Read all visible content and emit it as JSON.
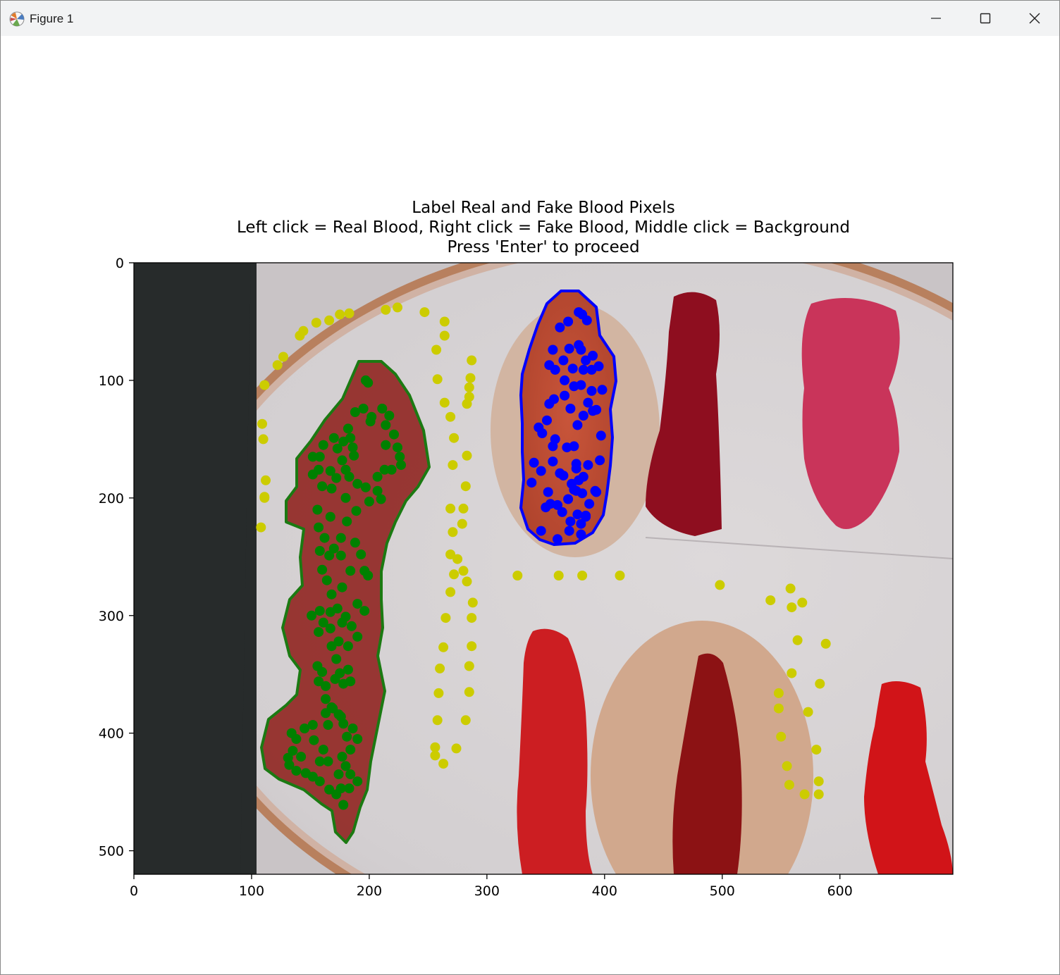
{
  "window": {
    "title": "Figure 1",
    "app_icon": "matplotlib-icon",
    "controls": {
      "minimize": "minimize-icon",
      "maximize": "maximize-icon",
      "close": "close-icon"
    }
  },
  "figure": {
    "title_lines": [
      "Label Real and Fake Blood Pixels",
      "Left click = Real Blood, Right click = Fake Blood, Middle click = Background",
      "Press 'Enter' to proceed"
    ]
  },
  "chart_data": {
    "type": "scatter",
    "title": "Label Real and Fake Blood Pixels\nLeft click = Real Blood, Right click = Fake Blood, Middle click = Background\nPress 'Enter' to proceed",
    "xlim": [
      0,
      696
    ],
    "ylim": [
      520,
      0
    ],
    "y_inverted": true,
    "background": "photograph of embroidery hoop with red blood and fake-blood stains on white fabric",
    "x_ticks": [
      0,
      100,
      200,
      300,
      400,
      500,
      600
    ],
    "y_ticks": [
      0,
      100,
      200,
      300,
      400,
      500
    ],
    "colors": {
      "green": "#008000",
      "blue": "#0000ff",
      "yellow": "#cccc00"
    },
    "series": [
      {
        "color": "green",
        "marker": "o",
        "points": [
          [
            197,
            100
          ],
          [
            199,
            102
          ],
          [
            195,
            124
          ],
          [
            202,
            131
          ],
          [
            211,
            124
          ],
          [
            214,
            138
          ],
          [
            217,
            130
          ],
          [
            221,
            146
          ],
          [
            224,
            157
          ],
          [
            226,
            165
          ],
          [
            227,
            172
          ],
          [
            214,
            155
          ],
          [
            201,
            135
          ],
          [
            188,
            127
          ],
          [
            182,
            141
          ],
          [
            184,
            149
          ],
          [
            186,
            157
          ],
          [
            187,
            164
          ],
          [
            178,
            152
          ],
          [
            170,
            149
          ],
          [
            173,
            158
          ],
          [
            177,
            168
          ],
          [
            180,
            176
          ],
          [
            161,
            155
          ],
          [
            152,
            165
          ],
          [
            158,
            165
          ],
          [
            152,
            180
          ],
          [
            157,
            176
          ],
          [
            167,
            177
          ],
          [
            172,
            183
          ],
          [
            183,
            182
          ],
          [
            190,
            188
          ],
          [
            197,
            191
          ],
          [
            207,
            182
          ],
          [
            213,
            176
          ],
          [
            219,
            176
          ],
          [
            207,
            194
          ],
          [
            210,
            201
          ],
          [
            200,
            203
          ],
          [
            189,
            211
          ],
          [
            180,
            200
          ],
          [
            168,
            192
          ],
          [
            160,
            190
          ],
          [
            156,
            210
          ],
          [
            157,
            225
          ],
          [
            162,
            234
          ],
          [
            167,
            216
          ],
          [
            170,
            243
          ],
          [
            176,
            234
          ],
          [
            181,
            220
          ],
          [
            188,
            238
          ],
          [
            193,
            248
          ],
          [
            196,
            262
          ],
          [
            199,
            266
          ],
          [
            184,
            262
          ],
          [
            176,
            249
          ],
          [
            166,
            249
          ],
          [
            158,
            245
          ],
          [
            160,
            261
          ],
          [
            164,
            270
          ],
          [
            168,
            282
          ],
          [
            177,
            276
          ],
          [
            190,
            290
          ],
          [
            196,
            296
          ],
          [
            180,
            301
          ],
          [
            173,
            294
          ],
          [
            167,
            297
          ],
          [
            158,
            296
          ],
          [
            161,
            306
          ],
          [
            151,
            300
          ],
          [
            157,
            314
          ],
          [
            167,
            311
          ],
          [
            177,
            306
          ],
          [
            185,
            309
          ],
          [
            190,
            318
          ],
          [
            182,
            326
          ],
          [
            174,
            322
          ],
          [
            168,
            326
          ],
          [
            172,
            337
          ],
          [
            175,
            349
          ],
          [
            182,
            346
          ],
          [
            184,
            356
          ],
          [
            178,
            358
          ],
          [
            171,
            354
          ],
          [
            163,
            360
          ],
          [
            160,
            348
          ],
          [
            156,
            343
          ],
          [
            157,
            356
          ],
          [
            163,
            371
          ],
          [
            168,
            378
          ],
          [
            174,
            384
          ],
          [
            178,
            392
          ],
          [
            181,
            403
          ],
          [
            176,
            386
          ],
          [
            169,
            379
          ],
          [
            163,
            383
          ],
          [
            152,
            393
          ],
          [
            145,
            396
          ],
          [
            138,
            405
          ],
          [
            135,
            415
          ],
          [
            131,
            421
          ],
          [
            132,
            427
          ],
          [
            138,
            432
          ],
          [
            146,
            434
          ],
          [
            152,
            437
          ],
          [
            158,
            441
          ],
          [
            166,
            448
          ],
          [
            172,
            452
          ],
          [
            176,
            447
          ],
          [
            178,
            461
          ],
          [
            183,
            447
          ],
          [
            190,
            441
          ],
          [
            184,
            435
          ],
          [
            180,
            428
          ],
          [
            177,
            420
          ],
          [
            184,
            414
          ],
          [
            190,
            405
          ],
          [
            186,
            396
          ],
          [
            165,
            393
          ],
          [
            153,
            406
          ],
          [
            161,
            414
          ],
          [
            165,
            424
          ],
          [
            158,
            424
          ],
          [
            142,
            420
          ],
          [
            134,
            400
          ],
          [
            174,
            435
          ]
        ]
      },
      {
        "color": "blue",
        "marker": "o",
        "points": [
          [
            378,
            42
          ],
          [
            381,
            44
          ],
          [
            385,
            49
          ],
          [
            369,
            50
          ],
          [
            362,
            55
          ],
          [
            356,
            74
          ],
          [
            365,
            83
          ],
          [
            370,
            73
          ],
          [
            380,
            74
          ],
          [
            378,
            70
          ],
          [
            384,
            83
          ],
          [
            390,
            79
          ],
          [
            395,
            88
          ],
          [
            389,
            91
          ],
          [
            382,
            91
          ],
          [
            373,
            90
          ],
          [
            358,
            91
          ],
          [
            353,
            87
          ],
          [
            366,
            100
          ],
          [
            374,
            105
          ],
          [
            380,
            104
          ],
          [
            389,
            109
          ],
          [
            386,
            119
          ],
          [
            398,
            108
          ],
          [
            390,
            126
          ],
          [
            393,
            125
          ],
          [
            382,
            130
          ],
          [
            377,
            138
          ],
          [
            371,
            124
          ],
          [
            366,
            113
          ],
          [
            357,
            116
          ],
          [
            353,
            120
          ],
          [
            351,
            134
          ],
          [
            358,
            150
          ],
          [
            347,
            145
          ],
          [
            344,
            140
          ],
          [
            356,
            156
          ],
          [
            368,
            157
          ],
          [
            374,
            156
          ],
          [
            376,
            171
          ],
          [
            376,
            175
          ],
          [
            382,
            182
          ],
          [
            378,
            185
          ],
          [
            381,
            196
          ],
          [
            376,
            194
          ],
          [
            372,
            188
          ],
          [
            365,
            181
          ],
          [
            362,
            179
          ],
          [
            356,
            169
          ],
          [
            346,
            177
          ],
          [
            340,
            170
          ],
          [
            338,
            187
          ],
          [
            352,
            195
          ],
          [
            354,
            205
          ],
          [
            364,
            212
          ],
          [
            369,
            201
          ],
          [
            377,
            214
          ],
          [
            371,
            220
          ],
          [
            380,
            222
          ],
          [
            384,
            216
          ],
          [
            387,
            205
          ],
          [
            393,
            195
          ],
          [
            392,
            194
          ],
          [
            386,
            172
          ],
          [
            374,
            193
          ],
          [
            360,
            206
          ],
          [
            350,
            208
          ],
          [
            346,
            228
          ],
          [
            360,
            235
          ],
          [
            370,
            228
          ],
          [
            380,
            231
          ],
          [
            384,
            215
          ],
          [
            396,
            168
          ],
          [
            397,
            147
          ]
        ]
      },
      {
        "color": "yellow",
        "marker": "o",
        "points": [
          [
            108,
            225
          ],
          [
            111,
            200
          ],
          [
            111,
            199
          ],
          [
            112,
            185
          ],
          [
            110,
            150
          ],
          [
            109,
            137
          ],
          [
            111,
            104
          ],
          [
            122,
            87
          ],
          [
            127,
            80
          ],
          [
            141,
            62
          ],
          [
            144,
            58
          ],
          [
            155,
            51
          ],
          [
            166,
            49
          ],
          [
            175,
            44
          ],
          [
            183,
            43
          ],
          [
            214,
            40
          ],
          [
            224,
            38
          ],
          [
            247,
            42
          ],
          [
            264,
            50
          ],
          [
            264,
            62
          ],
          [
            257,
            74
          ],
          [
            258,
            99
          ],
          [
            264,
            119
          ],
          [
            269,
            131
          ],
          [
            272,
            149
          ],
          [
            271,
            172
          ],
          [
            282,
            190
          ],
          [
            283,
            164
          ],
          [
            283,
            120
          ],
          [
            285,
            114
          ],
          [
            285,
            106
          ],
          [
            286,
            98
          ],
          [
            287,
            83
          ],
          [
            279,
            222
          ],
          [
            280,
            209
          ],
          [
            269,
            209
          ],
          [
            271,
            229
          ],
          [
            269,
            248
          ],
          [
            275,
            252
          ],
          [
            280,
            262
          ],
          [
            283,
            271
          ],
          [
            287,
            302
          ],
          [
            287,
            326
          ],
          [
            285,
            343
          ],
          [
            285,
            365
          ],
          [
            282,
            389
          ],
          [
            274,
            413
          ],
          [
            263,
            426
          ],
          [
            256,
            419
          ],
          [
            256,
            412
          ],
          [
            258,
            389
          ],
          [
            259,
            366
          ],
          [
            260,
            345
          ],
          [
            263,
            327
          ],
          [
            265,
            302
          ],
          [
            269,
            280
          ],
          [
            272,
            265
          ],
          [
            288,
            289
          ],
          [
            326,
            266
          ],
          [
            361,
            266
          ],
          [
            381,
            266
          ],
          [
            413,
            266
          ],
          [
            498,
            274
          ],
          [
            541,
            287
          ],
          [
            558,
            277
          ],
          [
            559,
            293
          ],
          [
            568,
            289
          ],
          [
            564,
            321
          ],
          [
            588,
            324
          ],
          [
            559,
            349
          ],
          [
            583,
            358
          ],
          [
            573,
            382
          ],
          [
            548,
            366
          ],
          [
            548,
            379
          ],
          [
            550,
            403
          ],
          [
            580,
            414
          ],
          [
            555,
            428
          ],
          [
            557,
            444
          ],
          [
            570,
            452
          ],
          [
            582,
            441
          ],
          [
            582,
            452
          ]
        ]
      }
    ],
    "contours": [
      {
        "color": "green",
        "region": "real blood (left click)"
      },
      {
        "color": "blue",
        "region": "fake blood (right click)"
      }
    ]
  }
}
